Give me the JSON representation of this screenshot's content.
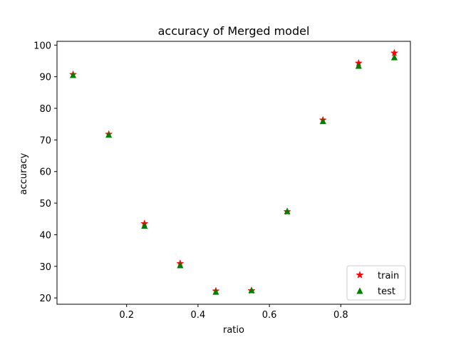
{
  "chart_data": {
    "type": "scatter",
    "title": "accuracy of Merged model",
    "xlabel": "ratio",
    "ylabel": "accuracy",
    "xlim": [
      0.005,
      0.995
    ],
    "ylim": [
      18,
      101.2
    ],
    "xticks": [
      0.2,
      0.4,
      0.6,
      0.8
    ],
    "xtick_labels": [
      "0.2",
      "0.4",
      "0.6",
      "0.8"
    ],
    "yticks": [
      20,
      30,
      40,
      50,
      60,
      70,
      80,
      90,
      100
    ],
    "ytick_labels": [
      "20",
      "30",
      "40",
      "50",
      "60",
      "70",
      "80",
      "90",
      "100"
    ],
    "grid": false,
    "legend_position": "lower right",
    "x": [
      0.05,
      0.15,
      0.25,
      0.35,
      0.45,
      0.55,
      0.65,
      0.75,
      0.85,
      0.95
    ],
    "series": [
      {
        "name": "train",
        "marker": "star",
        "color": "#ff0000",
        "values": [
          90.7,
          71.8,
          43.5,
          30.9,
          22.2,
          22.3,
          47.3,
          76.3,
          94.3,
          97.5
        ]
      },
      {
        "name": "test",
        "marker": "triangle",
        "color": "#008000",
        "values": [
          90.6,
          71.7,
          42.9,
          30.4,
          22.0,
          22.5,
          47.5,
          76.0,
          93.5,
          96.2
        ]
      }
    ]
  }
}
